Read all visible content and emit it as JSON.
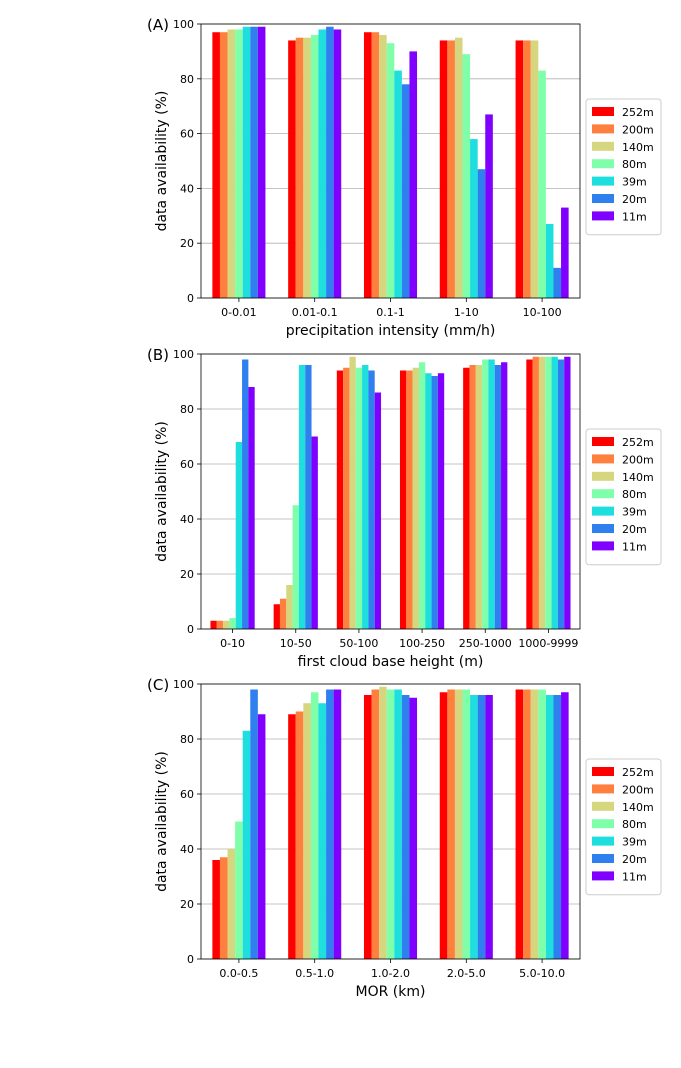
{
  "series_names": [
    "252m",
    "200m",
    "140m",
    "80m",
    "39m",
    "20m",
    "11m"
  ],
  "series_colors": [
    "#ff0000",
    "#ff7f3f",
    "#d6d67e",
    "#80ffaa",
    "#1fdede",
    "#2f7fef",
    "#8000ff"
  ],
  "chart_data": [
    {
      "type": "bar",
      "panel_label": "(A)",
      "title": "",
      "xlabel": "precipitation intensity (mm/h)",
      "ylabel": "data availability (%)",
      "ylim": [
        0,
        100
      ],
      "yticks": [
        "0",
        "20",
        "40",
        "60",
        "80",
        "100"
      ],
      "grid": "y",
      "legend_position": "right",
      "categories": [
        "0-0.01",
        "0.01-0.1",
        "0.1-1",
        "1-10",
        "10-100"
      ],
      "series": [
        {
          "name": "252m",
          "values": [
            97,
            94,
            97,
            94,
            94
          ]
        },
        {
          "name": "200m",
          "values": [
            97,
            95,
            97,
            94,
            94
          ]
        },
        {
          "name": "140m",
          "values": [
            98,
            95,
            96,
            95,
            94
          ]
        },
        {
          "name": "80m",
          "values": [
            98,
            96,
            93,
            89,
            83
          ]
        },
        {
          "name": "39m",
          "values": [
            99,
            98,
            83,
            58,
            27
          ]
        },
        {
          "name": "20m",
          "values": [
            99,
            99,
            78,
            47,
            11
          ]
        },
        {
          "name": "11m",
          "values": [
            99,
            98,
            90,
            67,
            33
          ]
        }
      ]
    },
    {
      "type": "bar",
      "panel_label": "(B)",
      "title": "",
      "xlabel": "first cloud base height (m)",
      "ylabel": "data availability (%)",
      "ylim": [
        0,
        100
      ],
      "yticks": [
        "0",
        "20",
        "40",
        "60",
        "80",
        "100"
      ],
      "grid": "y",
      "legend_position": "right",
      "categories": [
        "0-10",
        "10-50",
        "50-100",
        "100-250",
        "250-1000",
        "1000-9999"
      ],
      "series": [
        {
          "name": "252m",
          "values": [
            3,
            9,
            94,
            94,
            95,
            98
          ]
        },
        {
          "name": "200m",
          "values": [
            3,
            11,
            95,
            94,
            96,
            99
          ]
        },
        {
          "name": "140m",
          "values": [
            3,
            16,
            99,
            95,
            96,
            99
          ]
        },
        {
          "name": "80m",
          "values": [
            4,
            45,
            95,
            97,
            98,
            99
          ]
        },
        {
          "name": "39m",
          "values": [
            68,
            96,
            96,
            93,
            98,
            99
          ]
        },
        {
          "name": "20m",
          "values": [
            98,
            96,
            94,
            92,
            96,
            98
          ]
        },
        {
          "name": "11m",
          "values": [
            88,
            70,
            86,
            93,
            97,
            99
          ]
        }
      ]
    },
    {
      "type": "bar",
      "panel_label": "(C)",
      "title": "",
      "xlabel": "MOR (km)",
      "ylabel": "data availability (%)",
      "ylim": [
        0,
        100
      ],
      "yticks": [
        "0",
        "20",
        "40",
        "60",
        "80",
        "100"
      ],
      "grid": "y",
      "legend_position": "right",
      "categories": [
        "0.0-0.5",
        "0.5-1.0",
        "1.0-2.0",
        "2.0-5.0",
        "5.0-10.0"
      ],
      "series": [
        {
          "name": "252m",
          "values": [
            36,
            89,
            96,
            97,
            98
          ]
        },
        {
          "name": "200m",
          "values": [
            37,
            90,
            98,
            98,
            98
          ]
        },
        {
          "name": "140m",
          "values": [
            40,
            93,
            99,
            98,
            98
          ]
        },
        {
          "name": "80m",
          "values": [
            50,
            97,
            98,
            98,
            98
          ]
        },
        {
          "name": "39m",
          "values": [
            83,
            93,
            98,
            96,
            96
          ]
        },
        {
          "name": "20m",
          "values": [
            98,
            98,
            96,
            96,
            96
          ]
        },
        {
          "name": "11m",
          "values": [
            89,
            98,
            95,
            96,
            97
          ]
        }
      ]
    }
  ]
}
